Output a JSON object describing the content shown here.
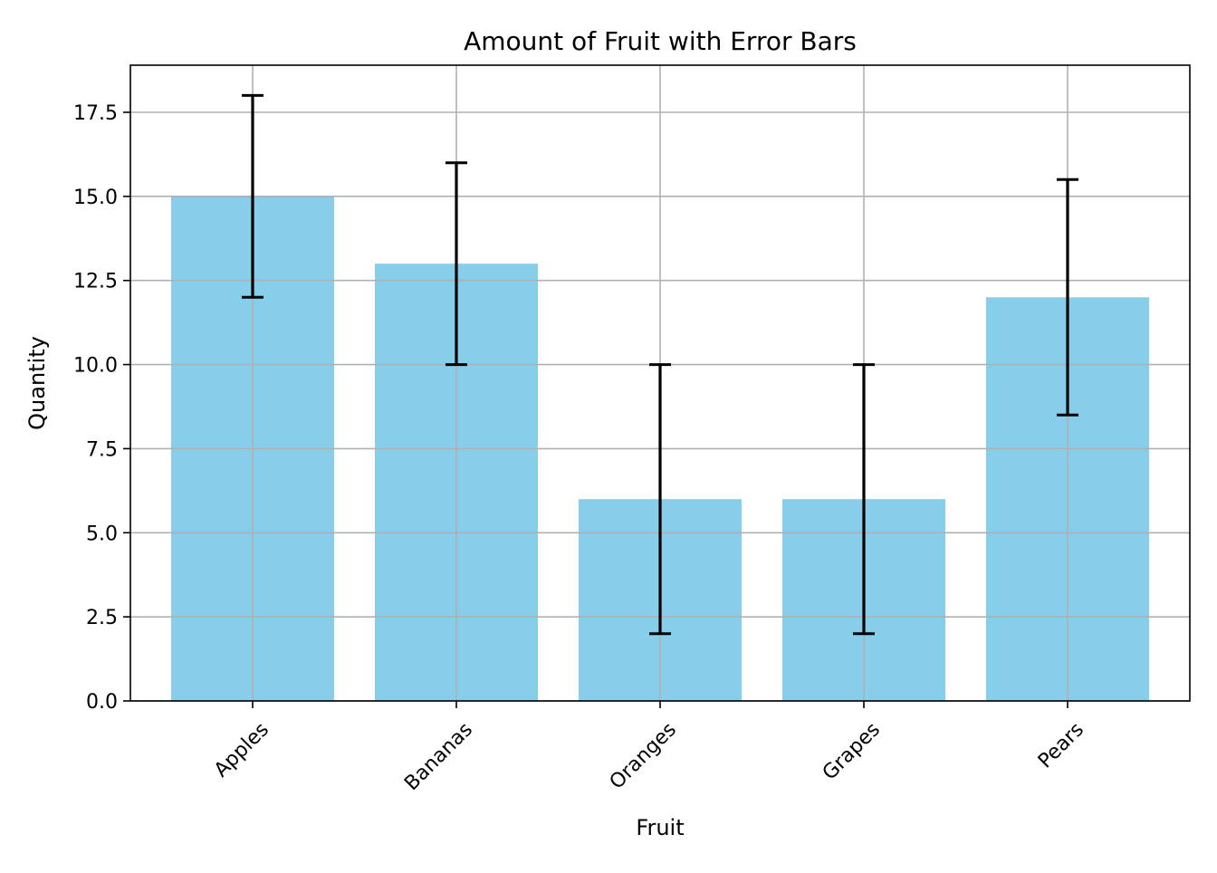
{
  "chart_data": {
    "type": "bar",
    "title": "Amount of Fruit with Error Bars",
    "xlabel": "Fruit",
    "ylabel": "Quantity",
    "categories": [
      "Apples",
      "Bananas",
      "Oranges",
      "Grapes",
      "Pears"
    ],
    "values": [
      15,
      13,
      6,
      6,
      12
    ],
    "error_bars": {
      "lower": [
        12,
        10,
        2,
        2,
        8.5
      ],
      "upper": [
        18,
        16,
        10,
        10,
        15.5
      ]
    },
    "ylim": [
      0,
      18.9
    ],
    "y_ticks": [
      0.0,
      2.5,
      5.0,
      7.5,
      10.0,
      12.5,
      15.0,
      17.5
    ],
    "y_tick_labels": [
      "0.0",
      "2.5",
      "5.0",
      "7.5",
      "10.0",
      "12.5",
      "15.0",
      "17.5"
    ],
    "grid": true,
    "x_tick_rotation": "45",
    "colors": {
      "bar": "#87CEEB",
      "error_bar": "#000000",
      "grid": "#b0b0b0",
      "axes": "#000000"
    }
  }
}
